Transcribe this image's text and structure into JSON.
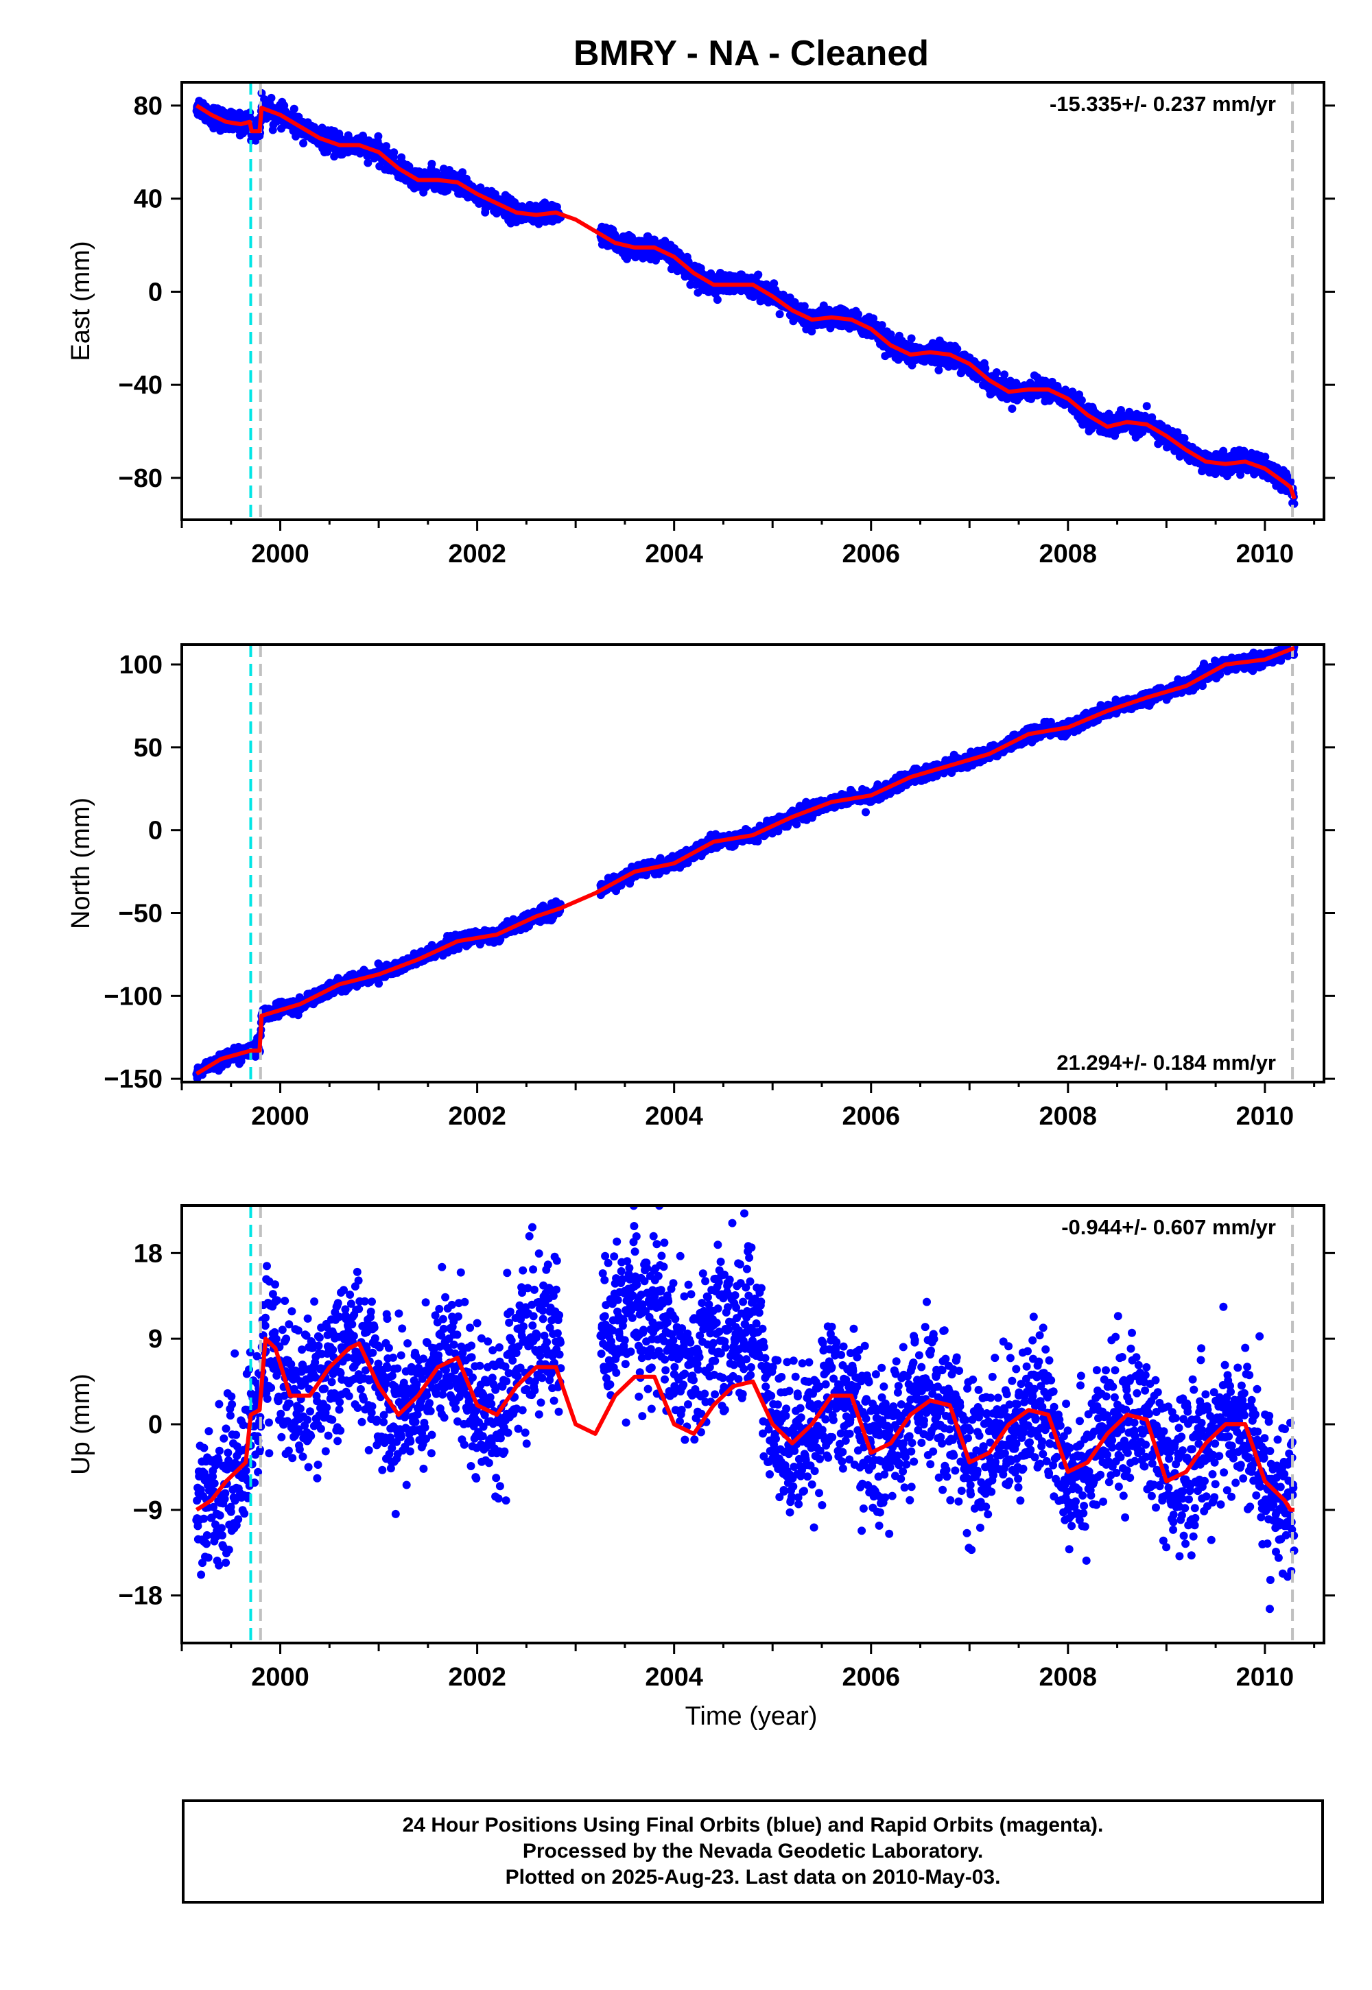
{
  "title": "BMRY  - NA - Cleaned",
  "x_axis": {
    "label": "Time (year)",
    "range": [
      1999.0,
      2010.6
    ],
    "ticks": [
      2000,
      2002,
      2004,
      2006,
      2008,
      2010
    ],
    "tick_labels": [
      "2000",
      "2002",
      "2004",
      "2006",
      "2008",
      "2010"
    ]
  },
  "colors": {
    "data_points": "#0000ff",
    "model_line": "#ff0000",
    "equipment_change_line": "#00e5e5",
    "offset_line": "#c0c0c0"
  },
  "footer": {
    "line1": "24 Hour Positions Using Final Orbits (blue) and Rapid Orbits (magenta).",
    "line2": "Processed by the Nevada Geodetic Laboratory.",
    "line3": "Plotted on 2025-Aug-23. Last data on 2010-May-03."
  },
  "chart_data": [
    {
      "type": "scatter",
      "component": "East",
      "ylabel": "East (mm)",
      "ylim": [
        -98,
        90
      ],
      "yticks": [
        80,
        40,
        0,
        -40,
        -80
      ],
      "ytick_labels": [
        "80",
        "40",
        "0",
        "−40",
        "−80"
      ],
      "rate_text": "-15.335+/- 0.237 mm/yr",
      "rate_position": "top-right",
      "vertical_lines": [
        {
          "x": 1999.7,
          "kind": "equipment_change"
        },
        {
          "x": 1999.8,
          "kind": "offset"
        },
        {
          "x": 2010.28,
          "kind": "offset"
        }
      ],
      "data_gap": [
        2002.85,
        2003.25
      ],
      "model_curve": {
        "x": [
          1999.15,
          1999.3,
          1999.45,
          1999.6,
          1999.69,
          1999.71,
          1999.79,
          1999.81,
          2000.0,
          2000.2,
          2000.4,
          2000.6,
          2000.8,
          2001.0,
          2001.2,
          2001.4,
          2001.6,
          2001.8,
          2002.0,
          2002.2,
          2002.4,
          2002.6,
          2002.8,
          2003.0,
          2003.2,
          2003.4,
          2003.6,
          2003.8,
          2004.0,
          2004.2,
          2004.4,
          2004.6,
          2004.8,
          2005.0,
          2005.2,
          2005.4,
          2005.6,
          2005.8,
          2006.0,
          2006.2,
          2006.4,
          2006.6,
          2006.8,
          2007.0,
          2007.2,
          2007.4,
          2007.6,
          2007.8,
          2008.0,
          2008.2,
          2008.4,
          2008.6,
          2008.8,
          2009.0,
          2009.2,
          2009.4,
          2009.6,
          2009.8,
          2010.0,
          2010.2,
          2010.26,
          2010.3
        ],
        "y": [
          80,
          76,
          73,
          72,
          73,
          69,
          69,
          79,
          76,
          71,
          66,
          63,
          63,
          60,
          53,
          48,
          48,
          47,
          42,
          38,
          34,
          33,
          34,
          31,
          26,
          21,
          19,
          19,
          15,
          8,
          3,
          3,
          3,
          -2,
          -8,
          -12,
          -11,
          -12,
          -16,
          -23,
          -27,
          -26,
          -27,
          -31,
          -38,
          -43,
          -42,
          -42,
          -46,
          -53,
          -58,
          -56,
          -57,
          -62,
          -68,
          -73,
          -74,
          -73,
          -76,
          -82,
          -84,
          -89
        ]
      },
      "scatter_params": {
        "noise": 2.2,
        "count_per_year": 300
      }
    },
    {
      "type": "scatter",
      "component": "North",
      "ylabel": "North (mm)",
      "ylim": [
        -152,
        112
      ],
      "yticks": [
        100,
        50,
        0,
        -50,
        -100,
        -150
      ],
      "ytick_labels": [
        "100",
        "50",
        "0",
        "−50",
        "−100",
        "−150"
      ],
      "rate_text": "21.294+/- 0.184 mm/yr",
      "rate_position": "bottom-right",
      "vertical_lines": [
        {
          "x": 1999.7,
          "kind": "equipment_change"
        },
        {
          "x": 1999.8,
          "kind": "offset"
        },
        {
          "x": 2010.28,
          "kind": "offset"
        }
      ],
      "data_gap": [
        2002.85,
        2003.25
      ],
      "model_curve": {
        "x": [
          1999.15,
          1999.4,
          1999.7,
          1999.79,
          1999.81,
          2000.2,
          2000.6,
          2001.0,
          2001.4,
          2001.8,
          2002.2,
          2002.6,
          2002.85,
          2003.2,
          2003.6,
          2004.0,
          2004.4,
          2004.8,
          2005.2,
          2005.6,
          2006.0,
          2006.4,
          2006.8,
          2007.2,
          2007.6,
          2008.0,
          2008.4,
          2008.8,
          2009.2,
          2009.6,
          2010.0,
          2010.3
        ],
        "y": [
          -147,
          -138,
          -133,
          -133,
          -112,
          -105,
          -93,
          -87,
          -78,
          -67,
          -63,
          -52,
          -47,
          -38,
          -25,
          -20,
          -7,
          -3,
          8,
          17,
          21,
          32,
          39,
          46,
          58,
          62,
          72,
          80,
          87,
          100,
          103,
          110
        ]
      },
      "scatter_params": {
        "noise": 2.0,
        "count_per_year": 300
      }
    },
    {
      "type": "scatter",
      "component": "Up",
      "ylabel": "Up (mm)",
      "ylim": [
        -23,
        23
      ],
      "yticks": [
        18,
        9,
        0,
        -9,
        -18
      ],
      "ytick_labels": [
        "18",
        "9",
        "0",
        "−9",
        "−18"
      ],
      "rate_text": "-0.944+/- 0.607 mm/yr",
      "rate_position": "top-right",
      "vertical_lines": [
        {
          "x": 1999.7,
          "kind": "equipment_change"
        },
        {
          "x": 1999.8,
          "kind": "offset"
        },
        {
          "x": 2010.28,
          "kind": "offset"
        }
      ],
      "data_gap": [
        2002.85,
        2003.25
      ],
      "model_curve": {
        "x": [
          1999.15,
          1999.3,
          1999.45,
          1999.65,
          1999.7,
          1999.79,
          1999.85,
          1999.95,
          2000.1,
          2000.3,
          2000.5,
          2000.7,
          2000.8,
          2001.0,
          2001.2,
          2001.4,
          2001.6,
          2001.8,
          2002.0,
          2002.2,
          2002.4,
          2002.6,
          2002.8,
          2003.0,
          2003.2,
          2003.4,
          2003.6,
          2003.8,
          2004.0,
          2004.2,
          2004.4,
          2004.6,
          2004.8,
          2005.0,
          2005.2,
          2005.4,
          2005.6,
          2005.8,
          2006.0,
          2006.2,
          2006.4,
          2006.6,
          2006.8,
          2007.0,
          2007.2,
          2007.4,
          2007.6,
          2007.8,
          2008.0,
          2008.2,
          2008.4,
          2008.6,
          2008.8,
          2009.0,
          2009.2,
          2009.4,
          2009.6,
          2009.8,
          2010.0,
          2010.2,
          2010.26,
          2010.3
        ],
        "y": [
          -9,
          -8,
          -6,
          -4,
          1,
          1.5,
          9,
          8,
          3,
          3,
          6,
          8,
          8.5,
          4,
          1,
          3,
          6,
          7,
          2,
          1,
          4,
          6,
          6,
          0,
          -1,
          3,
          5,
          5,
          0,
          -1,
          2,
          4,
          4.5,
          0,
          -2,
          0,
          3,
          3,
          -3,
          -2,
          1,
          2.5,
          2,
          -4,
          -3,
          0,
          1.5,
          1,
          -5,
          -4,
          -1,
          1,
          0.5,
          -6,
          -5,
          -2,
          0,
          0,
          -6,
          -8,
          -9,
          -9
        ]
      },
      "scatter_params": {
        "noise": 3.8,
        "count_per_year": 300
      }
    }
  ]
}
